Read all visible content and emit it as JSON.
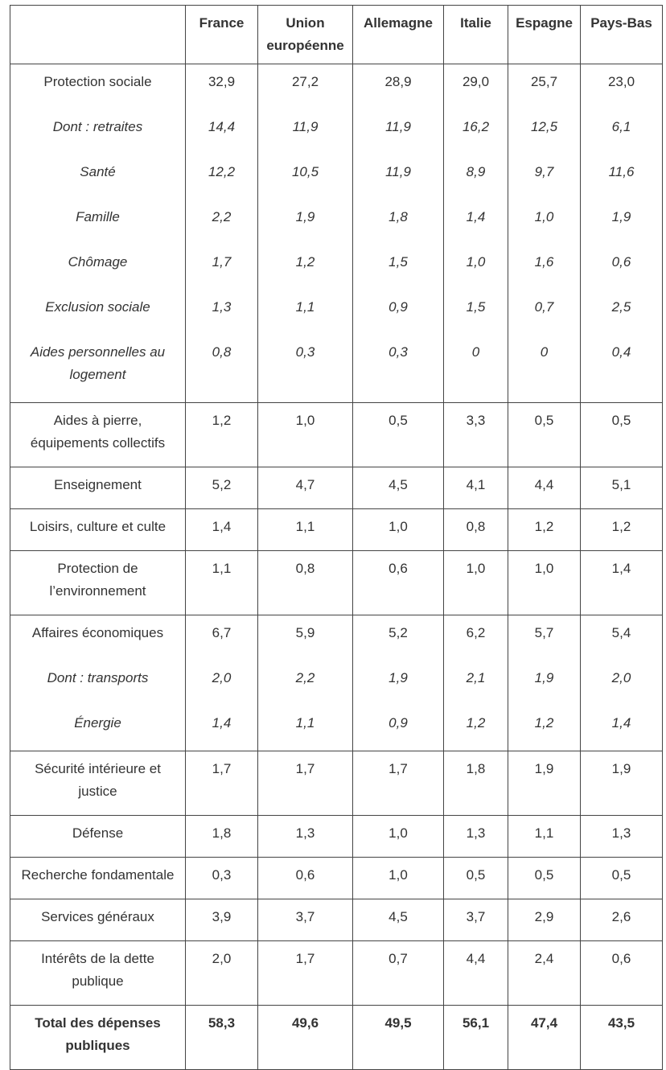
{
  "table": {
    "columns": [
      "France",
      "Union européenne",
      "Allemagne",
      "Italie",
      "Espagne",
      "Pays-Bas"
    ],
    "groups": [
      {
        "rows": [
          {
            "label": "Protection sociale",
            "values": [
              "32,9",
              "27,2",
              "28,9",
              "29,0",
              "25,7",
              "23,0"
            ]
          },
          {
            "label": "Dont : retraites",
            "italic": true,
            "values": [
              "14,4",
              "11,9",
              "11,9",
              "16,2",
              "12,5",
              "6,1"
            ]
          },
          {
            "label": "Santé",
            "italic": true,
            "values": [
              "12,2",
              "10,5",
              "11,9",
              "8,9",
              "9,7",
              "11,6"
            ]
          },
          {
            "label": "Famille",
            "italic": true,
            "values": [
              "2,2",
              "1,9",
              "1,8",
              "1,4",
              "1,0",
              "1,9"
            ]
          },
          {
            "label": "Chômage",
            "italic": true,
            "values": [
              "1,7",
              "1,2",
              "1,5",
              "1,0",
              "1,6",
              "0,6"
            ]
          },
          {
            "label": "Exclusion sociale",
            "italic": true,
            "values": [
              "1,3",
              "1,1",
              "0,9",
              "1,5",
              "0,7",
              "2,5"
            ]
          },
          {
            "label": "Aides personnelles au logement",
            "italic": true,
            "values": [
              "0,8",
              "0,3",
              "0,3",
              "0",
              "0",
              "0,4"
            ]
          }
        ]
      },
      {
        "rows": [
          {
            "label": "Aides à pierre, équipements collectifs",
            "values": [
              "1,2",
              "1,0",
              "0,5",
              "3,3",
              "0,5",
              "0,5"
            ]
          }
        ]
      },
      {
        "rows": [
          {
            "label": "Enseignement",
            "values": [
              "5,2",
              "4,7",
              "4,5",
              "4,1",
              "4,4",
              "5,1"
            ]
          }
        ]
      },
      {
        "rows": [
          {
            "label": "Loisirs, culture et culte",
            "values": [
              "1,4",
              "1,1",
              "1,0",
              "0,8",
              "1,2",
              "1,2"
            ]
          }
        ]
      },
      {
        "rows": [
          {
            "label": "Protection de l’environnement",
            "values": [
              "1,1",
              "0,8",
              "0,6",
              "1,0",
              "1,0",
              "1,4"
            ]
          }
        ]
      },
      {
        "rows": [
          {
            "label": "Affaires économiques",
            "values": [
              "6,7",
              "5,9",
              "5,2",
              "6,2",
              "5,7",
              "5,4"
            ]
          },
          {
            "label": "Dont : transports",
            "italic": true,
            "values": [
              "2,0",
              "2,2",
              "1,9",
              "2,1",
              "1,9",
              "2,0"
            ]
          },
          {
            "label": "Énergie",
            "italic": true,
            "values": [
              "1,4",
              "1,1",
              "0,9",
              "1,2",
              "1,2",
              "1,4"
            ]
          }
        ]
      },
      {
        "rows": [
          {
            "label": "Sécurité intérieure et justice",
            "values": [
              "1,7",
              "1,7",
              "1,7",
              "1,8",
              "1,9",
              "1,9"
            ]
          }
        ]
      },
      {
        "rows": [
          {
            "label": "Défense",
            "values": [
              "1,8",
              "1,3",
              "1,0",
              "1,3",
              "1,1",
              "1,3"
            ]
          }
        ]
      },
      {
        "rows": [
          {
            "label": "Recherche fondamentale",
            "values": [
              "0,3",
              "0,6",
              "1,0",
              "0,5",
              "0,5",
              "0,5"
            ]
          }
        ]
      },
      {
        "rows": [
          {
            "label": "Services généraux",
            "values": [
              "3,9",
              "3,7",
              "4,5",
              "3,7",
              "2,9",
              "2,6"
            ]
          }
        ]
      },
      {
        "rows": [
          {
            "label": "Intérêts de la dette publique",
            "values": [
              "2,0",
              "1,7",
              "0,7",
              "4,4",
              "2,4",
              "0,6"
            ]
          }
        ]
      },
      {
        "rows": [
          {
            "label": "Total des dépenses publiques",
            "bold": true,
            "values": [
              "58,3",
              "49,6",
              "49,5",
              "56,1",
              "47,4",
              "43,5"
            ]
          }
        ]
      }
    ]
  }
}
